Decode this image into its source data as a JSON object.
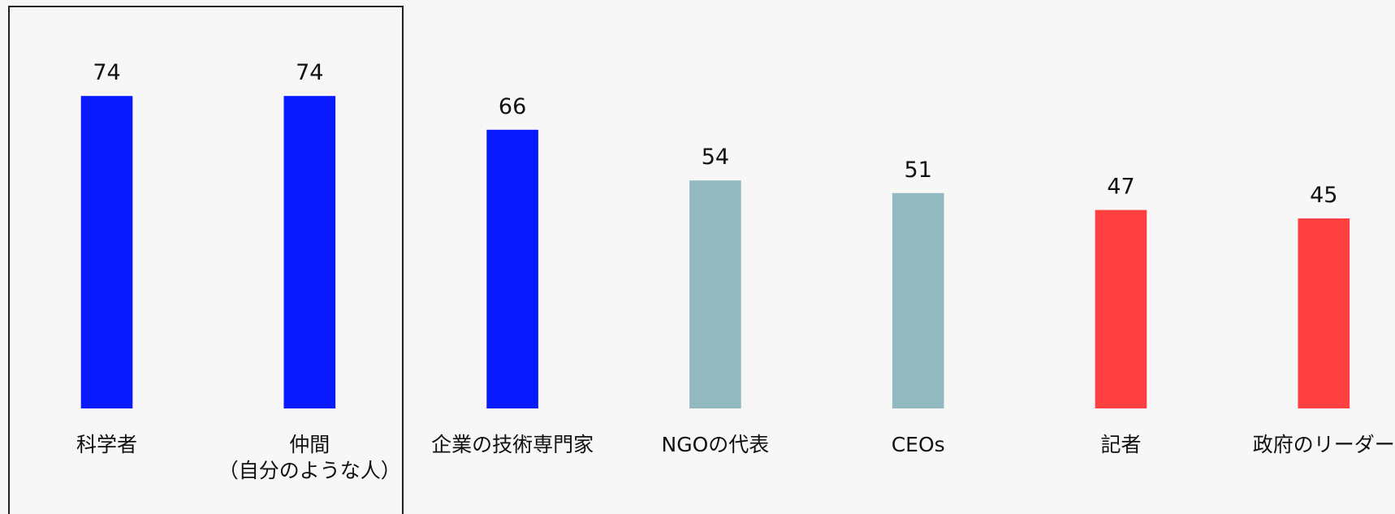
{
  "chart_data": {
    "type": "bar",
    "categories": [
      "科学者",
      "仲間\n（自分のような人）",
      "企業の技術専門家",
      "NGOの代表",
      "CEOs",
      "記者",
      "政府のリーダー"
    ],
    "values": [
      74,
      74,
      66,
      54,
      51,
      47,
      45
    ],
    "colors": [
      "#0a1aff",
      "#0a1aff",
      "#0a1aff",
      "#92b9bf",
      "#92b9bf",
      "#ff4040",
      "#ff4040"
    ],
    "ylim": [
      0,
      80
    ]
  }
}
